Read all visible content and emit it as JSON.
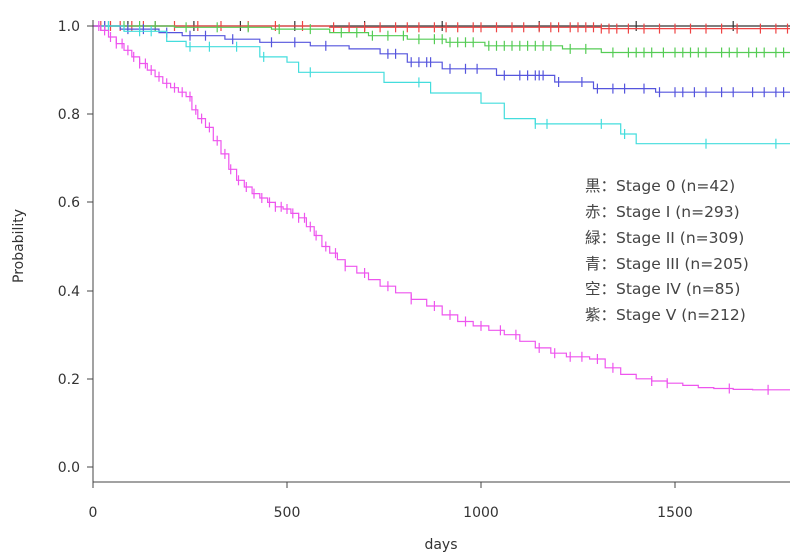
{
  "chart_data": {
    "type": "line",
    "title": "",
    "xlabel": "days",
    "ylabel": "Probability",
    "xlim": [
      0,
      1800
    ],
    "ylim": [
      0,
      1.0
    ],
    "x_ticks": [
      "0",
      "500",
      "1000",
      "1500"
    ],
    "y_ticks": [
      "0.0",
      "0.2",
      "0.4",
      "0.6",
      "0.8",
      "1.0"
    ],
    "legend_position": "right",
    "legend": [
      "黒：Stage 0 (n=42)",
      "赤：Stage I (n=293)",
      "緑：Stage II (n=309)",
      "青：Stage III (n=205)",
      "空：Stage IV (n=85)",
      "紫：Stage V (n=212)"
    ],
    "series": [
      {
        "color": "#333333",
        "points": [
          [
            0,
            1.0
          ],
          [
            1800,
            1.0
          ]
        ],
        "censor": [
          30,
          90,
          160,
          260,
          380,
          520,
          700,
          900,
          1150,
          1400,
          1650
        ]
      },
      {
        "color": "#ee4444",
        "points": [
          [
            0,
            1.0
          ],
          [
            600,
            1.0
          ],
          [
            610,
            0.997
          ],
          [
            1300,
            0.997
          ],
          [
            1310,
            0.994
          ],
          [
            1800,
            0.994
          ]
        ],
        "censor": [
          20,
          45,
          70,
          100,
          130,
          160,
          210,
          270,
          330,
          400,
          470,
          540,
          620,
          660,
          700,
          740,
          780,
          810,
          840,
          880,
          910,
          940,
          980,
          1000,
          1040,
          1080,
          1110,
          1150,
          1180,
          1200,
          1230,
          1250,
          1270,
          1290,
          1310,
          1330,
          1350,
          1380,
          1420,
          1460,
          1500,
          1540,
          1580,
          1620,
          1660,
          1720,
          1760,
          1790
        ]
      },
      {
        "color": "#55cc55",
        "points": [
          [
            0,
            1.0
          ],
          [
            200,
            1.0
          ],
          [
            210,
            0.997
          ],
          [
            450,
            0.997
          ],
          [
            460,
            0.993
          ],
          [
            600,
            0.993
          ],
          [
            610,
            0.985
          ],
          [
            700,
            0.985
          ],
          [
            710,
            0.978
          ],
          [
            800,
            0.978
          ],
          [
            810,
            0.97
          ],
          [
            900,
            0.97
          ],
          [
            910,
            0.963
          ],
          [
            1000,
            0.963
          ],
          [
            1010,
            0.955
          ],
          [
            1200,
            0.955
          ],
          [
            1210,
            0.948
          ],
          [
            1300,
            0.948
          ],
          [
            1310,
            0.94
          ],
          [
            1800,
            0.94
          ]
        ],
        "censor": [
          40,
          80,
          120,
          160,
          240,
          320,
          400,
          480,
          560,
          640,
          680,
          720,
          760,
          800,
          840,
          880,
          900,
          920,
          940,
          960,
          980,
          1020,
          1040,
          1060,
          1080,
          1100,
          1120,
          1140,
          1160,
          1180,
          1230,
          1270,
          1340,
          1380,
          1400,
          1420,
          1440,
          1470,
          1500,
          1520,
          1540,
          1560,
          1580,
          1620,
          1640,
          1660,
          1690,
          1710,
          1730,
          1760,
          1780
        ]
      },
      {
        "color": "#5555dd",
        "points": [
          [
            0,
            1.0
          ],
          [
            60,
            1.0
          ],
          [
            70,
            0.993
          ],
          [
            160,
            0.993
          ],
          [
            170,
            0.985
          ],
          [
            220,
            0.985
          ],
          [
            230,
            0.978
          ],
          [
            330,
            0.978
          ],
          [
            340,
            0.97
          ],
          [
            420,
            0.97
          ],
          [
            430,
            0.963
          ],
          [
            550,
            0.963
          ],
          [
            560,
            0.955
          ],
          [
            650,
            0.955
          ],
          [
            660,
            0.948
          ],
          [
            730,
            0.948
          ],
          [
            740,
            0.937
          ],
          [
            800,
            0.937
          ],
          [
            810,
            0.918
          ],
          [
            890,
            0.918
          ],
          [
            900,
            0.903
          ],
          [
            1030,
            0.903
          ],
          [
            1040,
            0.888
          ],
          [
            1180,
            0.888
          ],
          [
            1190,
            0.873
          ],
          [
            1280,
            0.873
          ],
          [
            1290,
            0.858
          ],
          [
            1440,
            0.858
          ],
          [
            1450,
            0.85
          ],
          [
            1800,
            0.85
          ]
        ],
        "censor": [
          30,
          90,
          130,
          190,
          250,
          290,
          360,
          460,
          520,
          600,
          760,
          780,
          820,
          840,
          860,
          870,
          920,
          960,
          990,
          1060,
          1100,
          1120,
          1140,
          1150,
          1160,
          1200,
          1260,
          1300,
          1340,
          1370,
          1420,
          1460,
          1500,
          1520,
          1550,
          1580,
          1620,
          1650,
          1700,
          1730,
          1760,
          1780
        ]
      },
      {
        "color": "#44dddd",
        "points": [
          [
            0,
            1.0
          ],
          [
            70,
            1.0
          ],
          [
            80,
            0.988
          ],
          [
            180,
            0.988
          ],
          [
            190,
            0.965
          ],
          [
            230,
            0.965
          ],
          [
            240,
            0.953
          ],
          [
            420,
            0.953
          ],
          [
            430,
            0.93
          ],
          [
            490,
            0.93
          ],
          [
            500,
            0.918
          ],
          [
            520,
            0.918
          ],
          [
            530,
            0.895
          ],
          [
            740,
            0.895
          ],
          [
            750,
            0.872
          ],
          [
            860,
            0.872
          ],
          [
            870,
            0.848
          ],
          [
            990,
            0.848
          ],
          [
            1000,
            0.825
          ],
          [
            1050,
            0.825
          ],
          [
            1060,
            0.79
          ],
          [
            1130,
            0.79
          ],
          [
            1140,
            0.778
          ],
          [
            1350,
            0.778
          ],
          [
            1360,
            0.755
          ],
          [
            1390,
            0.755
          ],
          [
            1400,
            0.733
          ],
          [
            1800,
            0.733
          ]
        ],
        "censor": [
          40,
          120,
          150,
          250,
          300,
          370,
          440,
          560,
          840,
          1140,
          1170,
          1310,
          1370,
          1580,
          1760
        ]
      },
      {
        "color": "#ee55ee",
        "points": [
          [
            0,
            1.0
          ],
          [
            20,
            0.99
          ],
          [
            40,
            0.975
          ],
          [
            60,
            0.96
          ],
          [
            80,
            0.945
          ],
          [
            100,
            0.93
          ],
          [
            120,
            0.915
          ],
          [
            140,
            0.9
          ],
          [
            160,
            0.885
          ],
          [
            180,
            0.87
          ],
          [
            200,
            0.86
          ],
          [
            220,
            0.85
          ],
          [
            240,
            0.84
          ],
          [
            255,
            0.81
          ],
          [
            270,
            0.79
          ],
          [
            290,
            0.77
          ],
          [
            310,
            0.74
          ],
          [
            330,
            0.71
          ],
          [
            350,
            0.675
          ],
          [
            370,
            0.65
          ],
          [
            390,
            0.635
          ],
          [
            410,
            0.62
          ],
          [
            430,
            0.61
          ],
          [
            450,
            0.6
          ],
          [
            470,
            0.59
          ],
          [
            490,
            0.585
          ],
          [
            510,
            0.575
          ],
          [
            530,
            0.565
          ],
          [
            550,
            0.545
          ],
          [
            570,
            0.525
          ],
          [
            590,
            0.5
          ],
          [
            610,
            0.485
          ],
          [
            630,
            0.47
          ],
          [
            650,
            0.455
          ],
          [
            680,
            0.44
          ],
          [
            710,
            0.425
          ],
          [
            740,
            0.41
          ],
          [
            780,
            0.395
          ],
          [
            820,
            0.38
          ],
          [
            860,
            0.365
          ],
          [
            900,
            0.345
          ],
          [
            940,
            0.33
          ],
          [
            980,
            0.32
          ],
          [
            1020,
            0.31
          ],
          [
            1060,
            0.3
          ],
          [
            1100,
            0.285
          ],
          [
            1140,
            0.27
          ],
          [
            1180,
            0.258
          ],
          [
            1220,
            0.25
          ],
          [
            1280,
            0.245
          ],
          [
            1320,
            0.225
          ],
          [
            1360,
            0.21
          ],
          [
            1400,
            0.2
          ],
          [
            1440,
            0.195
          ],
          [
            1480,
            0.19
          ],
          [
            1520,
            0.185
          ],
          [
            1560,
            0.18
          ],
          [
            1600,
            0.178
          ],
          [
            1650,
            0.176
          ],
          [
            1700,
            0.175
          ],
          [
            1800,
            0.175
          ]
        ],
        "censor": [
          15,
          30,
          45,
          60,
          75,
          90,
          105,
          120,
          135,
          150,
          170,
          190,
          210,
          230,
          250,
          265,
          280,
          300,
          320,
          340,
          355,
          375,
          395,
          415,
          435,
          455,
          470,
          485,
          500,
          515,
          530,
          545,
          560,
          575,
          600,
          625,
          650,
          700,
          760,
          820,
          880,
          920,
          960,
          1000,
          1050,
          1090,
          1150,
          1190,
          1230,
          1260,
          1300,
          1340,
          1440,
          1480,
          1640,
          1740
        ]
      }
    ]
  }
}
